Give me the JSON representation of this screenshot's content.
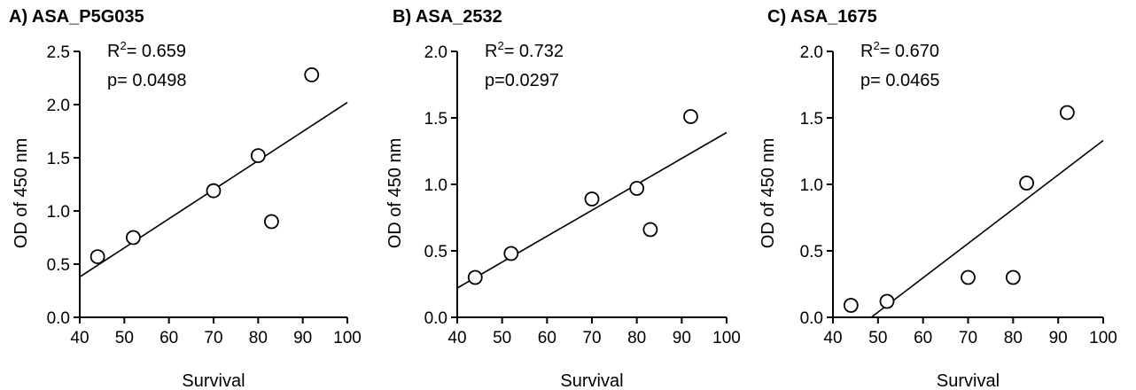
{
  "chart_data": [
    {
      "type": "scatter",
      "title": "A) ASA_P5G035",
      "xlabel": "Survival",
      "ylabel": "OD of 450 nm",
      "xlim": [
        40,
        100
      ],
      "ylim": [
        0,
        2.5
      ],
      "xticks": [
        "40",
        "50",
        "60",
        "70",
        "80",
        "90",
        "100"
      ],
      "yticks": [
        "0.0",
        "0.5",
        "1.0",
        "1.5",
        "2.0",
        "2.5"
      ],
      "r2_label": "R",
      "r2_sup": "2",
      "r2_value": "= 0.659",
      "p_text": "p= 0.0498",
      "points": [
        [
          44,
          0.57
        ],
        [
          52,
          0.75
        ],
        [
          70,
          1.19
        ],
        [
          80,
          1.52
        ],
        [
          83,
          0.9
        ],
        [
          92,
          2.28
        ]
      ],
      "fit": [
        [
          40,
          0.38
        ],
        [
          100,
          2.02
        ]
      ]
    },
    {
      "type": "scatter",
      "title": "B) ASA_2532",
      "xlabel": "Survival",
      "ylabel": "OD of 450 nm",
      "xlim": [
        40,
        100
      ],
      "ylim": [
        0,
        2.0
      ],
      "xticks": [
        "40",
        "50",
        "60",
        "70",
        "80",
        "90",
        "100"
      ],
      "yticks": [
        "0.0",
        "0.5",
        "1.0",
        "1.5",
        "2.0"
      ],
      "r2_label": "R",
      "r2_sup": "2",
      "r2_value": "= 0.732",
      "p_text": "p=0.0297",
      "points": [
        [
          44,
          0.3
        ],
        [
          52,
          0.48
        ],
        [
          70,
          0.89
        ],
        [
          80,
          0.97
        ],
        [
          83,
          0.66
        ],
        [
          92,
          1.51
        ]
      ],
      "fit": [
        [
          40,
          0.22
        ],
        [
          100,
          1.39
        ]
      ]
    },
    {
      "type": "scatter",
      "title": "C) ASA_1675",
      "xlabel": "Survival",
      "ylabel": "OD of 450 nm",
      "xlim": [
        40,
        100
      ],
      "ylim": [
        0,
        2.0
      ],
      "xticks": [
        "40",
        "50",
        "60",
        "70",
        "80",
        "90",
        "100"
      ],
      "yticks": [
        "0.0",
        "0.5",
        "1.0",
        "1.5",
        "2.0"
      ],
      "r2_label": "R",
      "r2_sup": "2",
      "r2_value": "= 0.670",
      "p_text": "p= 0.0465",
      "points": [
        [
          44,
          0.09
        ],
        [
          52,
          0.12
        ],
        [
          70,
          0.3
        ],
        [
          80,
          0.3
        ],
        [
          83,
          1.01
        ],
        [
          92,
          1.54
        ]
      ],
      "fit": [
        [
          48.5,
          0.0
        ],
        [
          100,
          1.33
        ]
      ]
    }
  ]
}
